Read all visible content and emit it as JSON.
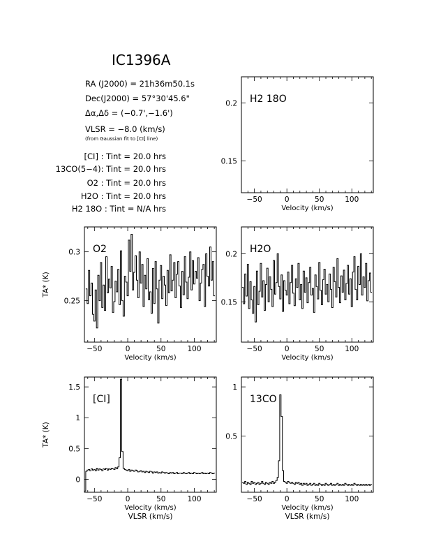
{
  "figure": {
    "title": "IC1396A",
    "info": {
      "ra": "RA (J2000) = 21h36m50.1s",
      "dec": "Dec(J2000) = 57°30'45.6\"",
      "offset": "Δα,Δδ = (−0.7',−1.6')",
      "vlsr": "VLSR = −8.0 (km/s)",
      "vlsr_note": "(from Gaussian fit to [CI] line)",
      "tint": [
        "[CI] : Tint = 20.0 hrs",
        "13CO(5−4): Tint = 20.0 hrs",
        "O2 : Tint = 20.0 hrs",
        "H2O : Tint = 20.0 hrs",
        "H2 18O : Tint = N/A hrs"
      ]
    }
  },
  "chart_data": [
    {
      "id": "h218o",
      "type": "line",
      "label": "H2 18O",
      "xlabel": "Velocity (km/s)",
      "ylabel": "",
      "xlim": [
        -70,
        133
      ],
      "ylim": [
        0.1225,
        0.2225
      ],
      "xticks": [
        -50,
        0,
        50,
        100
      ],
      "yticks": [
        0.15,
        0.2
      ],
      "series": []
    },
    {
      "id": "o2",
      "type": "line",
      "label": "O2",
      "xlabel": "Velocity (km/s)",
      "ylabel": "TA* (K)",
      "xlim": [
        -65,
        133
      ],
      "ylim": [
        0.2075,
        0.3255
      ],
      "xticks": [
        -50,
        0,
        50,
        100
      ],
      "yticks": [
        0.25,
        0.3
      ],
      "series": [
        {
          "x": [
            -62,
            -60,
            -58,
            -56,
            -54,
            -52,
            -50,
            -48,
            -46,
            -44,
            -42,
            -40,
            -38,
            -36,
            -34,
            -32,
            -30,
            -28,
            -26,
            -24,
            -22,
            -20,
            -18,
            -16,
            -14,
            -12,
            -10,
            -8,
            -6,
            -4,
            -2,
            0,
            2,
            4,
            6,
            8,
            10,
            12,
            14,
            16,
            18,
            20,
            22,
            24,
            26,
            28,
            30,
            32,
            34,
            36,
            38,
            40,
            42,
            44,
            46,
            48,
            50,
            52,
            54,
            56,
            58,
            60,
            62,
            64,
            66,
            68,
            70,
            72,
            74,
            76,
            78,
            80,
            82,
            84,
            86,
            88,
            90,
            92,
            94,
            96,
            98,
            100,
            102,
            104,
            106,
            108,
            110,
            112,
            114,
            116,
            118,
            120,
            122,
            124,
            126,
            128,
            130
          ],
          "y": [
            0.262,
            0.247,
            0.281,
            0.255,
            0.268,
            0.236,
            0.229,
            0.261,
            0.222,
            0.276,
            0.25,
            0.289,
            0.243,
            0.266,
            0.24,
            0.295,
            0.258,
            0.272,
            0.263,
            0.285,
            0.238,
            0.249,
            0.27,
            0.259,
            0.282,
            0.246,
            0.301,
            0.25,
            0.234,
            0.275,
            0.269,
            0.255,
            0.312,
            0.28,
            0.318,
            0.261,
            0.279,
            0.296,
            0.271,
            0.253,
            0.3,
            0.268,
            0.287,
            0.244,
            0.276,
            0.262,
            0.293,
            0.251,
            0.259,
            0.237,
            0.283,
            0.247,
            0.29,
            0.262,
            0.227,
            0.271,
            0.286,
            0.252,
            0.275,
            0.266,
            0.245,
            0.281,
            0.258,
            0.297,
            0.26,
            0.271,
            0.289,
            0.253,
            0.277,
            0.29,
            0.265,
            0.243,
            0.28,
            0.256,
            0.295,
            0.269,
            0.252,
            0.274,
            0.3,
            0.261,
            0.291,
            0.267,
            0.28,
            0.273,
            0.294,
            0.25,
            0.268,
            0.282,
            0.287,
            0.244,
            0.298,
            0.275,
            0.265,
            0.305,
            0.271,
            0.29,
            0.255
          ]
        }
      ]
    },
    {
      "id": "h2o",
      "type": "line",
      "label": "H2O",
      "xlabel": "Velocity (km/s)",
      "ylabel": "",
      "xlim": [
        -70,
        133
      ],
      "ylim": [
        0.108,
        0.228
      ],
      "xticks": [
        -50,
        0,
        50,
        100
      ],
      "yticks": [
        0.15,
        0.2
      ],
      "series": [
        {
          "x": [
            -68,
            -66,
            -64,
            -62,
            -60,
            -58,
            -56,
            -54,
            -52,
            -50,
            -48,
            -46,
            -44,
            -42,
            -40,
            -38,
            -36,
            -34,
            -32,
            -30,
            -28,
            -26,
            -24,
            -22,
            -20,
            -18,
            -16,
            -14,
            -12,
            -10,
            -8,
            -6,
            -4,
            -2,
            0,
            2,
            4,
            6,
            8,
            10,
            12,
            14,
            16,
            18,
            20,
            22,
            24,
            26,
            28,
            30,
            32,
            34,
            36,
            38,
            40,
            42,
            44,
            46,
            48,
            50,
            52,
            54,
            56,
            58,
            60,
            62,
            64,
            66,
            68,
            70,
            72,
            74,
            76,
            78,
            80,
            82,
            84,
            86,
            88,
            90,
            92,
            94,
            96,
            98,
            100,
            102,
            104,
            106,
            108,
            110,
            112,
            114,
            116,
            118,
            120,
            122,
            124,
            126,
            128,
            130
          ],
          "y": [
            0.165,
            0.148,
            0.179,
            0.156,
            0.189,
            0.143,
            0.171,
            0.152,
            0.138,
            0.166,
            0.129,
            0.182,
            0.147,
            0.161,
            0.19,
            0.155,
            0.172,
            0.141,
            0.168,
            0.185,
            0.15,
            0.176,
            0.163,
            0.145,
            0.193,
            0.158,
            0.17,
            0.2,
            0.166,
            0.153,
            0.178,
            0.14,
            0.172,
            0.162,
            0.157,
            0.181,
            0.148,
            0.17,
            0.188,
            0.159,
            0.146,
            0.174,
            0.165,
            0.19,
            0.152,
            0.168,
            0.143,
            0.182,
            0.16,
            0.175,
            0.149,
            0.17,
            0.186,
            0.157,
            0.164,
            0.139,
            0.178,
            0.166,
            0.153,
            0.191,
            0.162,
            0.147,
            0.173,
            0.184,
            0.158,
            0.168,
            0.15,
            0.179,
            0.163,
            0.144,
            0.186,
            0.171,
            0.155,
            0.195,
            0.165,
            0.149,
            0.177,
            0.16,
            0.183,
            0.152,
            0.169,
            0.188,
            0.158,
            0.174,
            0.145,
            0.181,
            0.197,
            0.163,
            0.152,
            0.187,
            0.168,
            0.2,
            0.157,
            0.176,
            0.165,
            0.19,
            0.151,
            0.172,
            0.18,
            0.16
          ]
        }
      ]
    },
    {
      "id": "ci",
      "type": "line",
      "label": "[CI]",
      "xlabel": "Velocity (km/s)",
      "xlabel2": "VLSR (km/s)",
      "ylabel": "TA* (K)",
      "xlim": [
        -65,
        133
      ],
      "ylim": [
        -0.21,
        1.66
      ],
      "xticks": [
        -50,
        0,
        50,
        100
      ],
      "yticks": [
        0,
        0.5,
        1,
        1.5
      ],
      "series": [
        {
          "x": [
            -64,
            -62,
            -60,
            -58,
            -56,
            -54,
            -52,
            -50,
            -48,
            -46,
            -44,
            -42,
            -40,
            -38,
            -36,
            -34,
            -32,
            -30,
            -28,
            -26,
            -24,
            -22,
            -20,
            -18,
            -16,
            -14,
            -12,
            -10,
            -8,
            -6,
            -4,
            -2,
            0,
            2,
            4,
            6,
            8,
            10,
            12,
            14,
            16,
            18,
            20,
            22,
            24,
            26,
            28,
            30,
            32,
            34,
            36,
            38,
            40,
            42,
            44,
            46,
            48,
            50,
            52,
            54,
            56,
            58,
            60,
            62,
            64,
            66,
            68,
            70,
            72,
            74,
            76,
            78,
            80,
            82,
            84,
            86,
            88,
            90,
            92,
            94,
            96,
            98,
            100,
            102,
            104,
            106,
            108,
            110,
            112,
            114,
            116,
            118,
            120,
            122,
            124,
            126,
            128,
            130
          ],
          "y": [
            -0.19,
            0.13,
            0.15,
            0.16,
            0.14,
            0.17,
            0.15,
            0.16,
            0.14,
            0.18,
            0.15,
            0.17,
            0.16,
            0.14,
            0.17,
            0.16,
            0.18,
            0.15,
            0.17,
            0.16,
            0.18,
            0.17,
            0.16,
            0.19,
            0.17,
            0.2,
            0.35,
            1.62,
            0.45,
            0.18,
            0.16,
            0.15,
            0.14,
            0.16,
            0.13,
            0.15,
            0.14,
            0.13,
            0.15,
            0.14,
            0.12,
            0.13,
            0.14,
            0.12,
            0.13,
            0.11,
            0.13,
            0.12,
            0.11,
            0.13,
            0.12,
            0.1,
            0.12,
            0.11,
            0.12,
            0.1,
            0.11,
            0.1,
            0.12,
            0.11,
            0.1,
            0.11,
            0.1,
            0.09,
            0.11,
            0.1,
            0.11,
            0.09,
            0.1,
            0.11,
            0.09,
            0.1,
            0.1,
            0.09,
            0.11,
            0.1,
            0.09,
            0.1,
            0.11,
            0.09,
            0.1,
            0.09,
            0.11,
            0.1,
            0.09,
            0.1,
            0.09,
            0.1,
            0.11,
            0.09,
            0.1,
            0.09,
            0.1,
            0.09,
            0.11,
            0.1,
            0.09,
            0.1
          ]
        }
      ]
    },
    {
      "id": "co13",
      "type": "line",
      "label": "13CO",
      "xlabel": "Velocity (km/s)",
      "xlabel2": "VLSR (km/s)",
      "ylabel": "",
      "xlim": [
        -70,
        133
      ],
      "ylim": [
        -0.07,
        1.1
      ],
      "xticks": [
        -50,
        0,
        50,
        100
      ],
      "yticks": [
        0.5,
        1
      ],
      "series": [
        {
          "x": [
            -68,
            -66,
            -64,
            -62,
            -60,
            -58,
            -56,
            -54,
            -52,
            -50,
            -48,
            -46,
            -44,
            -42,
            -40,
            -38,
            -36,
            -34,
            -32,
            -30,
            -28,
            -26,
            -24,
            -22,
            -20,
            -18,
            -16,
            -14,
            -12,
            -10,
            -8,
            -6,
            -4,
            -2,
            0,
            2,
            4,
            6,
            8,
            10,
            12,
            14,
            16,
            18,
            20,
            22,
            24,
            26,
            28,
            30,
            32,
            34,
            36,
            38,
            40,
            42,
            44,
            46,
            48,
            50,
            52,
            54,
            56,
            58,
            60,
            62,
            64,
            66,
            68,
            70,
            72,
            74,
            76,
            78,
            80,
            82,
            84,
            86,
            88,
            90,
            92,
            94,
            96,
            98,
            100,
            102,
            104,
            106,
            108,
            110,
            112,
            114,
            116,
            118,
            120,
            122,
            124,
            126,
            128,
            130
          ],
          "y": [
            0.03,
            0.02,
            0.04,
            0.01,
            0.03,
            0.02,
            0.01,
            0.04,
            0.02,
            0.03,
            0.01,
            0.02,
            0.03,
            0.01,
            0.02,
            0.04,
            0.02,
            0.01,
            0.03,
            0.02,
            0.01,
            0.03,
            0.02,
            0.04,
            0.02,
            0.03,
            0.05,
            0.08,
            0.25,
            0.92,
            0.7,
            0.15,
            0.04,
            0.03,
            0.02,
            0.04,
            0.03,
            0.02,
            0.03,
            0.02,
            0.01,
            0.03,
            0.02,
            0.03,
            0.01,
            0.02,
            0.0,
            0.02,
            0.01,
            0.02,
            0.0,
            0.01,
            0.02,
            0.0,
            0.01,
            0.02,
            0.0,
            0.01,
            0.0,
            0.02,
            0.01,
            0.0,
            0.01,
            0.0,
            0.02,
            0.01,
            0.0,
            0.01,
            0.02,
            0.0,
            0.01,
            0.0,
            0.01,
            0.02,
            0.0,
            0.01,
            0.0,
            0.01,
            0.0,
            0.02,
            0.01,
            0.0,
            0.01,
            0.0,
            0.01,
            0.0,
            0.02,
            0.01,
            0.0,
            0.01,
            0.0,
            0.01,
            0.0,
            0.01,
            0.0,
            0.01,
            0.0,
            0.01,
            0.0,
            0.01
          ]
        }
      ]
    }
  ]
}
